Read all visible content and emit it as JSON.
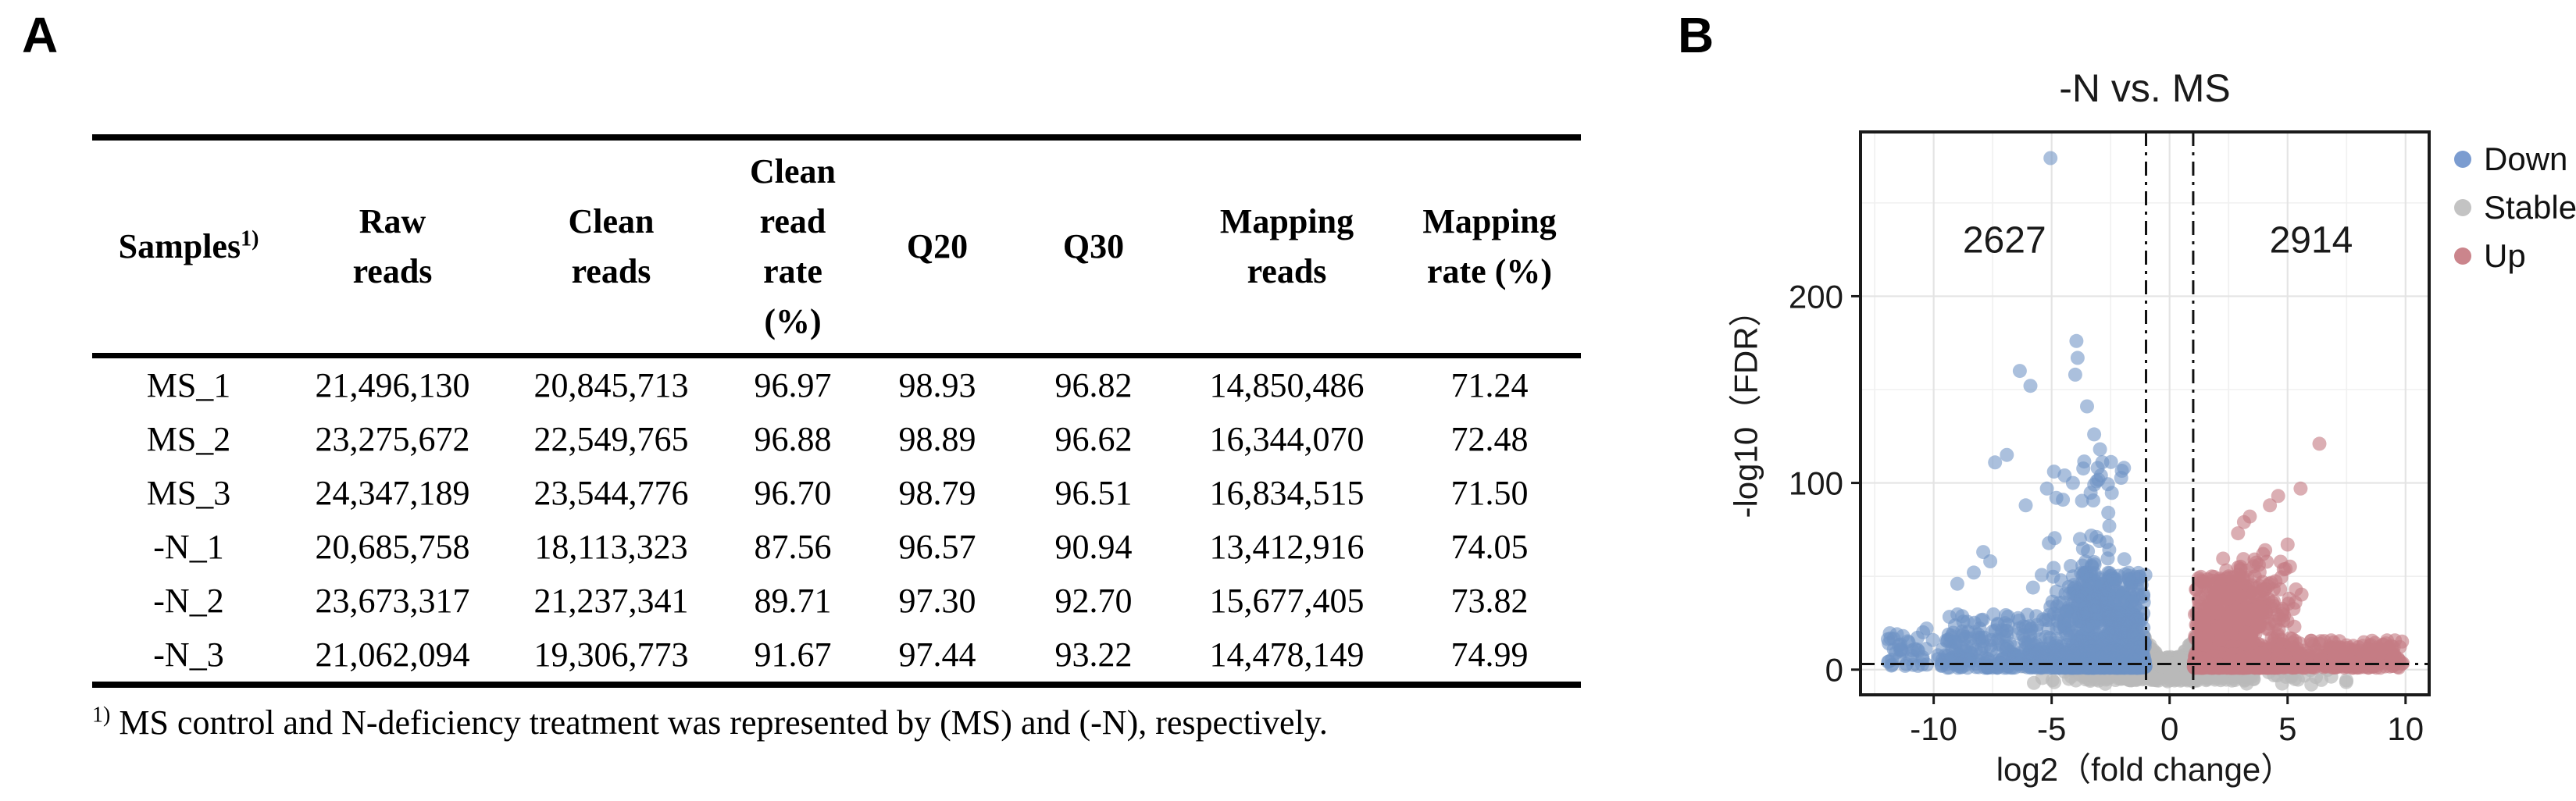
{
  "panel_a": {
    "label": "A",
    "table": {
      "headers": [
        {
          "text": "Samples",
          "sup": "1)"
        },
        {
          "text": "Raw\nreads"
        },
        {
          "text": "Clean\nreads"
        },
        {
          "text": "Clean\nread\nrate\n(%)"
        },
        {
          "text": "Q20"
        },
        {
          "text": "Q30"
        },
        {
          "text": "Mapping\nreads"
        },
        {
          "text": "Mapping\nrate (%)"
        }
      ],
      "rows": [
        [
          "MS_1",
          "21,496,130",
          "20,845,713",
          "96.97",
          "98.93",
          "96.82",
          "14,850,486",
          "71.24"
        ],
        [
          "MS_2",
          "23,275,672",
          "22,549,765",
          "96.88",
          "98.89",
          "96.62",
          "16,344,070",
          "72.48"
        ],
        [
          "MS_3",
          "24,347,189",
          "23,544,776",
          "96.70",
          "98.79",
          "96.51",
          "16,834,515",
          "71.50"
        ],
        [
          "-N_1",
          "20,685,758",
          "18,113,323",
          "87.56",
          "96.57",
          "90.94",
          "13,412,916",
          "74.05"
        ],
        [
          "-N_2",
          "23,673,317",
          "21,237,341",
          "89.71",
          "97.30",
          "92.70",
          "15,677,405",
          "73.82"
        ],
        [
          "-N_3",
          "21,062,094",
          "19,306,773",
          "91.67",
          "97.44",
          "93.22",
          "14,478,149",
          "74.99"
        ]
      ],
      "footnote": {
        "sup": "1)",
        "text": " MS control and N-deficiency treatment was represented by (MS) and (-N), respectively."
      }
    }
  },
  "panel_b": {
    "label": "B"
  },
  "chart_data": {
    "type": "scatter",
    "subtype": "volcano",
    "title": "-N vs. MS",
    "xlabel": "log2（fold change）",
    "ylabel": "-log10（FDR）",
    "xlim": [
      -13.1,
      11.0
    ],
    "ylim": [
      -13.5,
      288
    ],
    "xticks": [
      -10,
      -5,
      0,
      5,
      10
    ],
    "yticks": [
      0,
      100,
      200
    ],
    "x_minor": [
      -12.5,
      -7.5,
      -2.5,
      2.5,
      7.5
    ],
    "y_minor": [
      50,
      150,
      250
    ],
    "grid": true,
    "legend_position": "right",
    "thresholds": {
      "x": [
        -1,
        1
      ],
      "y": 3
    },
    "counts": {
      "down": 2627,
      "up": 2914
    },
    "annotations": [
      {
        "text": "2627",
        "x": -7.0,
        "y": 230
      },
      {
        "text": "2914",
        "x": 6.0,
        "y": 230
      }
    ],
    "legend": [
      {
        "label": "Down",
        "color": "#7b9cd0"
      },
      {
        "label": "Stable",
        "color": "#c3c3c3"
      },
      {
        "label": "Up",
        "color": "#cb858c"
      }
    ],
    "series": [
      {
        "group": "Stable",
        "color": "#b9b9b9",
        "opacity": 0.7,
        "gen": [
          {
            "type": "strip",
            "n": 650,
            "x": [
              -3.6,
              3.6
            ],
            "y": [
              -6,
              7
            ],
            "ypow": 1
          },
          {
            "type": "funnel",
            "n": 320,
            "x": [
              -1.6,
              1.6
            ],
            "y": [
              1,
              23
            ],
            "xref": 1.35
          },
          {
            "type": "strip",
            "n": 70,
            "x": [
              -6.5,
              7.6
            ],
            "y": [
              -8,
              3
            ],
            "ypow": 1
          }
        ]
      },
      {
        "group": "Down",
        "color": "#6e92c5",
        "opacity": 0.58,
        "gen": [
          {
            "type": "blob",
            "n": 850,
            "mu": -2.5,
            "sd": 1.25,
            "clip": [
              -6.2,
              -1.02
            ],
            "y": [
              1,
              52
            ],
            "ypow": 2.4
          },
          {
            "type": "strip",
            "n": 350,
            "x": [
              -6.0,
              -1.02
            ],
            "y": [
              1,
              10
            ],
            "ypow": 1.3
          },
          {
            "type": "strip",
            "n": 240,
            "x": [
              -9.6,
              -4.6
            ],
            "y": [
              1,
              30
            ],
            "ypow": 2.0
          },
          {
            "type": "strip",
            "n": 55,
            "x": [
              -12.0,
              -8.8
            ],
            "y": [
              2,
              20
            ],
            "ypow": 1.6
          },
          {
            "type": "blob",
            "n": 80,
            "mu": -3.3,
            "sd": 1.0,
            "clip": [
              -5.3,
              -1.4
            ],
            "y": [
              30,
              112
            ],
            "ypow": 1.9
          },
          {
            "type": "points",
            "pts": [
              [
                -5.05,
                274
              ],
              [
                -3.95,
                176
              ],
              [
                -3.9,
                167
              ],
              [
                -4.0,
                158
              ],
              [
                -6.35,
                160
              ],
              [
                -5.9,
                152
              ],
              [
                -3.5,
                141
              ],
              [
                -3.2,
                126
              ],
              [
                -2.95,
                118
              ],
              [
                -6.9,
                115
              ],
              [
                -7.4,
                111
              ],
              [
                -3.05,
                108
              ],
              [
                -4.45,
                104
              ],
              [
                -4.1,
                100
              ],
              [
                -5.2,
                97
              ],
              [
                -4.8,
                92
              ],
              [
                -6.1,
                88
              ],
              [
                -2.6,
                84
              ],
              [
                -7.9,
                63
              ],
              [
                -7.6,
                58
              ],
              [
                -8.3,
                52
              ],
              [
                -9.0,
                46
              ],
              [
                -10.3,
                22
              ],
              [
                -11.3,
                18
              ],
              [
                -11.9,
                14
              ],
              [
                -10.8,
                11
              ]
            ]
          }
        ]
      },
      {
        "group": "Up",
        "color": "#c57d85",
        "opacity": 0.62,
        "gen": [
          {
            "type": "blob",
            "n": 950,
            "mu": 2.5,
            "sd": 1.15,
            "clip": [
              1.02,
              5.4
            ],
            "y": [
              1,
              50
            ],
            "ypow": 2.4
          },
          {
            "type": "strip",
            "n": 400,
            "x": [
              1.02,
              4.8
            ],
            "y": [
              1,
              9
            ],
            "ypow": 1.3
          },
          {
            "type": "strip",
            "n": 260,
            "x": [
              4.4,
              9.9
            ],
            "y": [
              1,
              16
            ],
            "ypow": 1.8
          },
          {
            "type": "blob",
            "n": 45,
            "mu": 3.8,
            "sd": 1.1,
            "clip": [
              1.6,
              6.2
            ],
            "y": [
              28,
              62
            ],
            "ypow": 1.5
          },
          {
            "type": "points",
            "pts": [
              [
                6.35,
                121
              ],
              [
                5.55,
                97
              ],
              [
                4.6,
                93
              ],
              [
                4.25,
                88
              ],
              [
                3.4,
                82
              ],
              [
                3.15,
                79
              ],
              [
                2.9,
                73
              ],
              [
                5.0,
                67
              ],
              [
                4.05,
                64
              ],
              [
                3.6,
                59
              ],
              [
                9.85,
                15
              ],
              [
                9.3,
                12
              ],
              [
                8.6,
                9
              ],
              [
                7.5,
                13
              ]
            ]
          }
        ]
      }
    ]
  }
}
